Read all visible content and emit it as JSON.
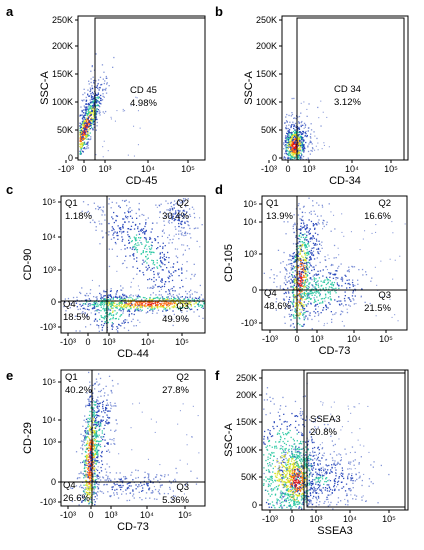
{
  "colors": {
    "density_low": "#1f3fb8",
    "density_mid": "#26c6a0",
    "density_high_a": "#d8e020",
    "density_high_b": "#ff6a10",
    "density_peak": "#e01010",
    "frame": "#000000"
  },
  "chart_data": [
    {
      "type": "scatter",
      "panel": "a",
      "xlabel": "CD-45",
      "ylabel": "SSC-A",
      "x_ticks": [
        "-10³",
        "0",
        "10³",
        "10⁴",
        "10⁵"
      ],
      "y_ticks": [
        "0",
        "50K",
        "100K",
        "150K",
        "200K",
        "250K"
      ],
      "gate_label": "CD 45",
      "gate_value": "4.98%",
      "quadrants": []
    },
    {
      "type": "scatter",
      "panel": "b",
      "xlabel": "CD-34",
      "ylabel": "SSC-A",
      "x_ticks": [
        "-10³",
        "0",
        "10³",
        "10⁴",
        "10⁵"
      ],
      "y_ticks": [
        "0",
        "50K",
        "100K",
        "150K",
        "200K",
        "250K"
      ],
      "gate_label": "CD 34",
      "gate_value": "3.12%",
      "quadrants": []
    },
    {
      "type": "scatter",
      "panel": "c",
      "xlabel": "CD-44",
      "ylabel": "CD-90",
      "x_ticks": [
        "-10³",
        "0",
        "10³",
        "10⁴",
        "10⁵"
      ],
      "y_ticks": [
        "-10³",
        "0",
        "10³",
        "10⁴",
        "10⁵"
      ],
      "gate_label": "",
      "gate_value": "",
      "quadrants": [
        {
          "name": "Q1",
          "value": "1.18%"
        },
        {
          "name": "Q2",
          "value": "30.4%"
        },
        {
          "name": "Q3",
          "value": "49.9%"
        },
        {
          "name": "Q4",
          "value": "18.5%"
        }
      ]
    },
    {
      "type": "scatter",
      "panel": "d",
      "xlabel": "CD-73",
      "ylabel": "CD-105",
      "x_ticks": [
        "-10³",
        "0",
        "10³",
        "10⁴",
        "10⁵"
      ],
      "y_ticks": [
        "-10³",
        "0",
        "10³",
        "10⁴",
        "10⁵"
      ],
      "gate_label": "",
      "gate_value": "",
      "quadrants": [
        {
          "name": "Q1",
          "value": "13.9%"
        },
        {
          "name": "Q2",
          "value": "16.6%"
        },
        {
          "name": "Q3",
          "value": "21.5%"
        },
        {
          "name": "Q4",
          "value": "48.6%"
        }
      ]
    },
    {
      "type": "scatter",
      "panel": "e",
      "xlabel": "CD-73",
      "ylabel": "CD-29",
      "x_ticks": [
        "-10³",
        "0",
        "10³",
        "10⁴",
        "10⁵"
      ],
      "y_ticks": [
        "-10³",
        "0",
        "10³",
        "10⁴",
        "10⁵"
      ],
      "gate_label": "",
      "gate_value": "",
      "quadrants": [
        {
          "name": "Q1",
          "value": "40.2%"
        },
        {
          "name": "Q2",
          "value": "27.8%"
        },
        {
          "name": "Q3",
          "value": "5.36%"
        },
        {
          "name": "Q4",
          "value": "26.6%"
        }
      ]
    },
    {
      "type": "scatter",
      "panel": "f",
      "xlabel": "SSEA3",
      "ylabel": "SSC-A",
      "x_ticks": [
        "-10³",
        "0",
        "10³",
        "10⁴",
        "10⁵"
      ],
      "y_ticks": [
        "0",
        "50K",
        "100K",
        "150K",
        "200K",
        "250K"
      ],
      "gate_label": "SSEA3",
      "gate_value": "20.8%",
      "quadrants": []
    }
  ]
}
